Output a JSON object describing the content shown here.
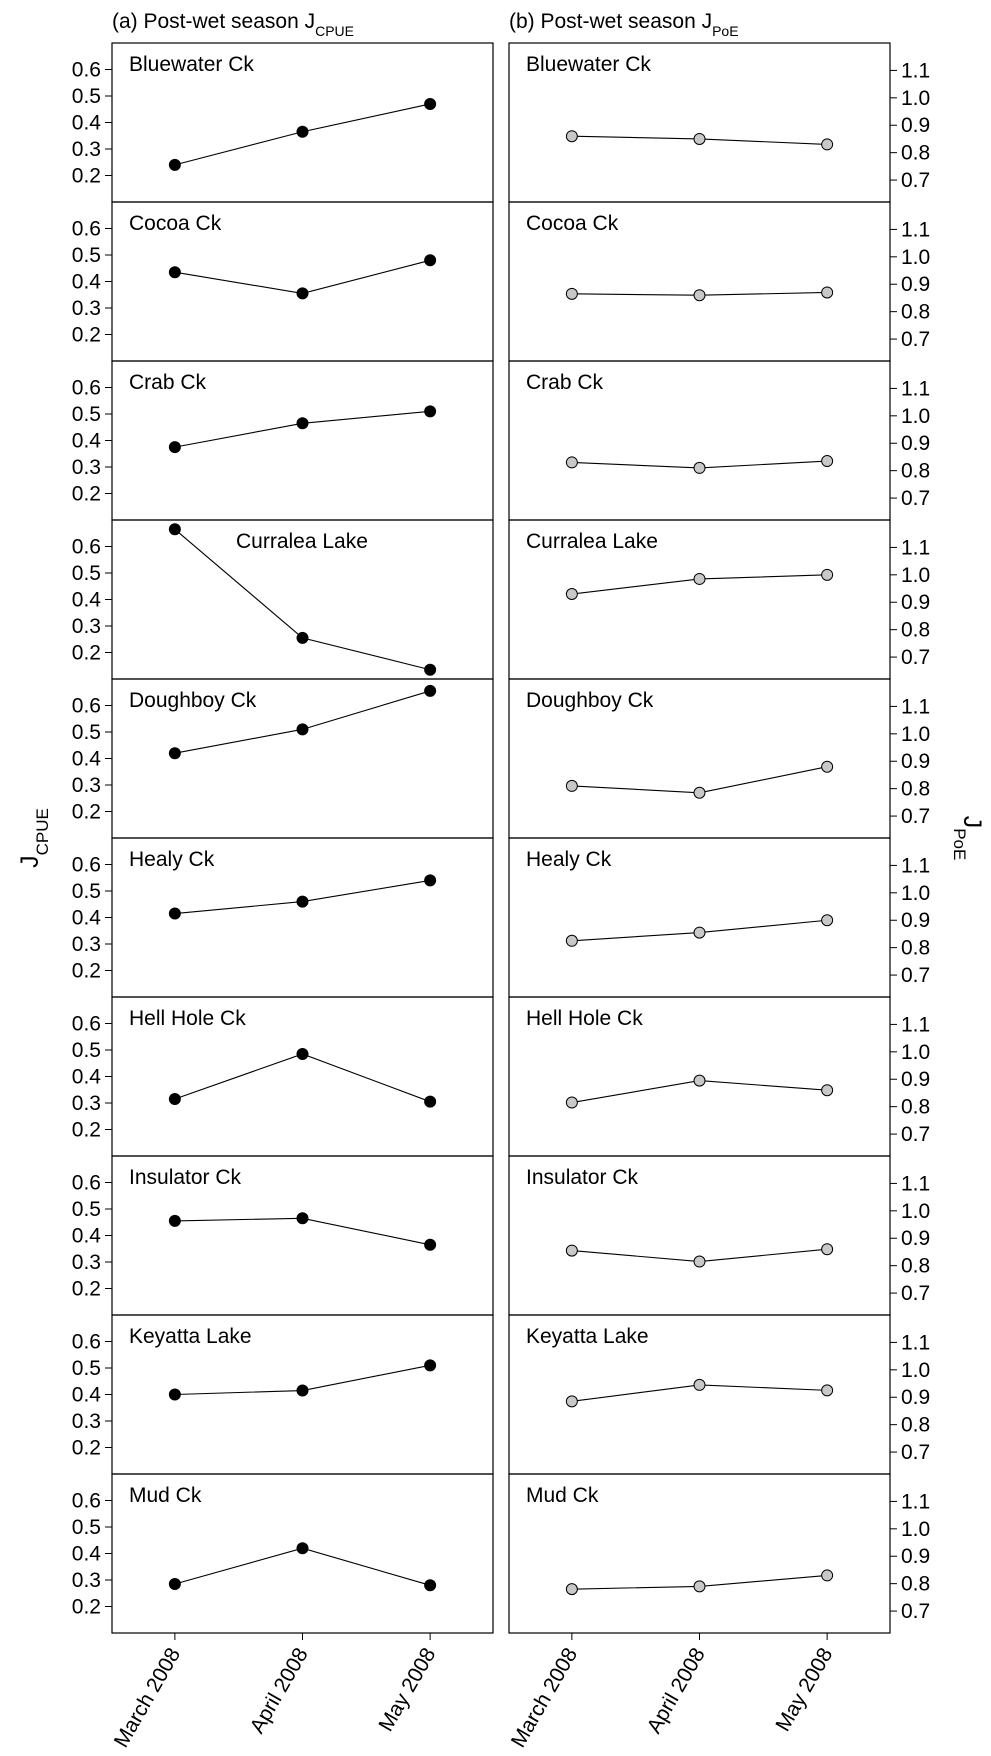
{
  "chart_data": {
    "type": "line",
    "x_categories": [
      "March 2008",
      "April 2008",
      "May 2008"
    ],
    "y_axis_left": {
      "label_main": "J",
      "label_sub": "CPUE",
      "ylim": [
        0.1,
        0.7
      ],
      "ticks": [
        "0.2",
        "0.3",
        "0.4",
        "0.5",
        "0.6"
      ]
    },
    "y_axis_right": {
      "label_main": "J",
      "label_sub": "PoE",
      "ylim": [
        0.62,
        1.2
      ],
      "ticks": [
        "0.7",
        "0.8",
        "0.9",
        "1.0",
        "1.1"
      ]
    },
    "panels": [
      {
        "id": "a",
        "title_prefix": "(a) Post-wet season J",
        "title_sub": "CPUE",
        "marker": "filled-black",
        "marker_color": "#000000"
      },
      {
        "id": "b",
        "title_prefix": "(b) Post-wet season J",
        "title_sub": "PoE",
        "marker": "open-grey",
        "marker_color": "#c8c8c8"
      }
    ],
    "sites": [
      {
        "name": "Bluewater Ck",
        "cpue": [
          0.24,
          0.365,
          0.47
        ],
        "poe": [
          0.86,
          0.85,
          0.83
        ]
      },
      {
        "name": "Cocoa Ck",
        "cpue": [
          0.435,
          0.355,
          0.48
        ],
        "poe": [
          0.865,
          0.86,
          0.87
        ]
      },
      {
        "name": "Crab Ck",
        "cpue": [
          0.375,
          0.465,
          0.51
        ],
        "poe": [
          0.83,
          0.81,
          0.835
        ]
      },
      {
        "name": "Curralea Lake",
        "cpue": [
          0.665,
          0.255,
          0.135
        ],
        "poe": [
          0.93,
          0.985,
          1.0
        ]
      },
      {
        "name": "Doughboy Ck",
        "cpue": [
          0.42,
          0.51,
          0.655
        ],
        "poe": [
          0.81,
          0.785,
          0.88
        ]
      },
      {
        "name": "Healy Ck",
        "cpue": [
          0.415,
          0.46,
          0.54
        ],
        "poe": [
          0.825,
          0.855,
          0.9
        ]
      },
      {
        "name": "Hell Hole Ck",
        "cpue": [
          0.315,
          0.485,
          0.305
        ],
        "poe": [
          0.815,
          0.895,
          0.86
        ]
      },
      {
        "name": "Insulator Ck",
        "cpue": [
          0.455,
          0.465,
          0.365
        ],
        "poe": [
          0.855,
          0.815,
          0.86
        ]
      },
      {
        "name": "Keyatta Lake",
        "cpue": [
          0.4,
          0.415,
          0.51
        ],
        "poe": [
          0.885,
          0.945,
          0.925
        ]
      },
      {
        "name": "Mud Ck",
        "cpue": [
          0.285,
          0.42,
          0.28
        ],
        "poe": [
          0.78,
          0.79,
          0.83
        ]
      }
    ]
  }
}
